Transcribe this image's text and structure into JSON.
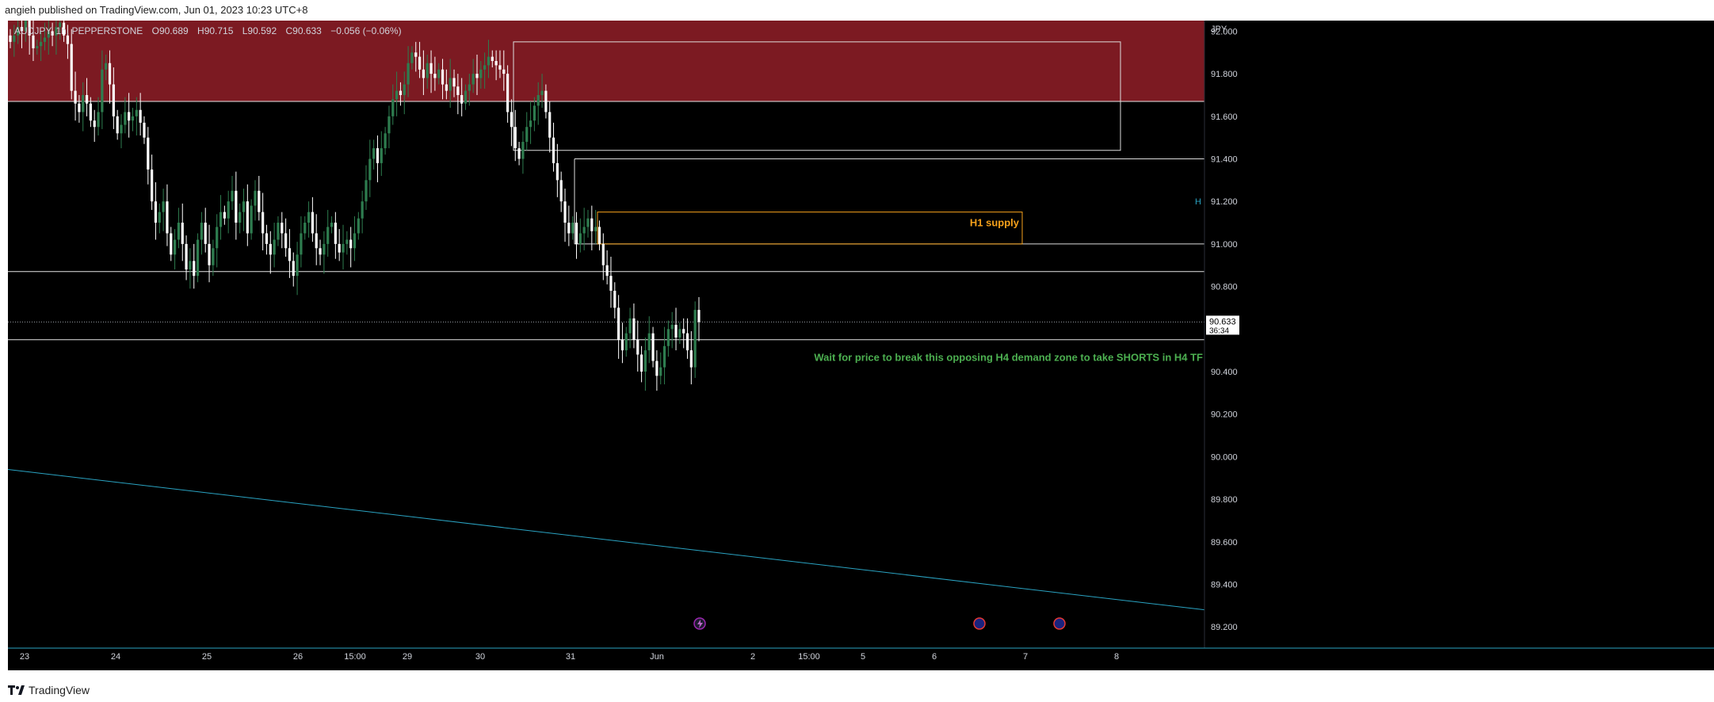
{
  "header": {
    "publisher_text": "angieh published on TradingView.com, Jun 01, 2023 10:23 UTC+8"
  },
  "legend": {
    "symbol": "AUDJPY, 1h, PEPPERSTONE",
    "open": "O90.689",
    "high": "H90.715",
    "low": "L90.592",
    "close": "C90.633",
    "change": "−0.056 (−0.06%)"
  },
  "footer": {
    "brand": "TradingView"
  },
  "colors": {
    "background": "#000000",
    "supply_zone_fill": "#7c1a22",
    "bull_candle": "#2e7d4f",
    "bear_candle": "#ffffff",
    "trendline": "#2aa3c2",
    "h1_supply": "#f7a21b",
    "note_text": "#4caf50"
  },
  "chart_data": {
    "type": "candlestick",
    "symbol": "AUDJPY",
    "timeframe": "1h",
    "currency": "JPY",
    "ylim": [
      89.1,
      92.05
    ],
    "yticks": [
      "92.000",
      "91.800",
      "91.600",
      "91.400",
      "91.200",
      "91.000",
      "90.800",
      "90.400",
      "90.200",
      "90.000",
      "89.800",
      "89.600",
      "89.400",
      "89.200"
    ],
    "xticks": [
      "23",
      "24",
      "25",
      "26",
      "15:00",
      "29",
      "30",
      "31",
      "Jun",
      "2",
      "15:00",
      "5",
      "6",
      "7",
      "8"
    ],
    "last_price": {
      "price": "90.633",
      "countdown": "36:34"
    },
    "zones": [
      {
        "name": "H4 supply",
        "top": 92.05,
        "bottom": 91.67
      },
      {
        "name": "outlined box upper",
        "top": 91.95,
        "bottom": 91.44
      },
      {
        "name": "outlined box lower",
        "top": 91.4,
        "bottom": 91.0
      },
      {
        "name": "H1 supply",
        "top": 91.15,
        "bottom": 91.0
      }
    ],
    "horizontal_lines": [
      90.87,
      90.55
    ],
    "trendline": {
      "from": 89.94,
      "to": 89.28
    },
    "annotations": {
      "h1_supply": "H1 supply",
      "note": "Wait for price to break this opposing H4 demand zone to take SHORTS in H4 TF",
      "axis_edge": "H"
    },
    "closes": [
      91.95,
      91.98,
      92.02,
      92.0,
      92.05,
      91.98,
      91.92,
      91.93,
      91.95,
      91.97,
      92.0,
      91.98,
      92.02,
      92.04,
      91.98,
      91.94,
      91.72,
      91.66,
      91.62,
      91.7,
      91.66,
      91.58,
      91.55,
      91.62,
      91.82,
      91.85,
      91.75,
      91.6,
      91.52,
      91.56,
      91.62,
      91.58,
      91.6,
      91.63,
      91.57,
      91.5,
      91.35,
      91.2,
      91.1,
      91.15,
      91.2,
      91.05,
      90.95,
      91.02,
      91.1,
      91.0,
      90.88,
      90.92,
      90.85,
      91.02,
      91.1,
      91.0,
      90.9,
      90.98,
      91.08,
      91.15,
      91.12,
      91.2,
      91.25,
      91.1,
      91.15,
      91.2,
      91.05,
      91.18,
      91.25,
      91.15,
      91.05,
      91.0,
      90.95,
      91.02,
      91.1,
      91.05,
      90.98,
      90.92,
      90.85,
      90.95,
      91.05,
      91.1,
      91.15,
      91.05,
      90.98,
      90.95,
      91.0,
      91.08,
      91.1,
      91.0,
      90.96,
      91.0,
      91.02,
      90.98,
      91.05,
      91.12,
      91.2,
      91.3,
      91.4,
      91.45,
      91.38,
      91.45,
      91.52,
      91.6,
      91.68,
      91.72,
      91.7,
      91.75,
      91.85,
      91.9,
      91.88,
      91.82,
      91.78,
      91.85,
      91.8,
      91.78,
      91.82,
      91.75,
      91.72,
      91.78,
      91.74,
      91.7,
      91.66,
      91.72,
      91.75,
      91.8,
      91.78,
      91.82,
      91.84,
      91.88,
      91.86,
      91.84,
      91.82,
      91.8,
      91.62,
      91.55,
      91.45,
      91.4,
      91.48,
      91.55,
      91.58,
      91.65,
      91.7,
      91.72,
      91.62,
      91.5,
      91.38,
      91.3,
      91.2,
      91.1,
      91.05,
      91.1,
      91.0,
      91.05,
      91.08,
      91.12,
      91.06,
      91.08,
      91.0,
      90.9,
      90.85,
      90.78,
      90.7,
      90.55,
      90.5,
      90.58,
      90.65,
      90.55,
      90.48,
      90.4,
      90.5,
      90.58,
      90.45,
      90.38,
      90.42,
      90.52,
      90.6,
      90.62,
      90.56,
      90.6,
      90.58,
      90.5,
      90.42,
      90.69,
      90.633
    ]
  }
}
